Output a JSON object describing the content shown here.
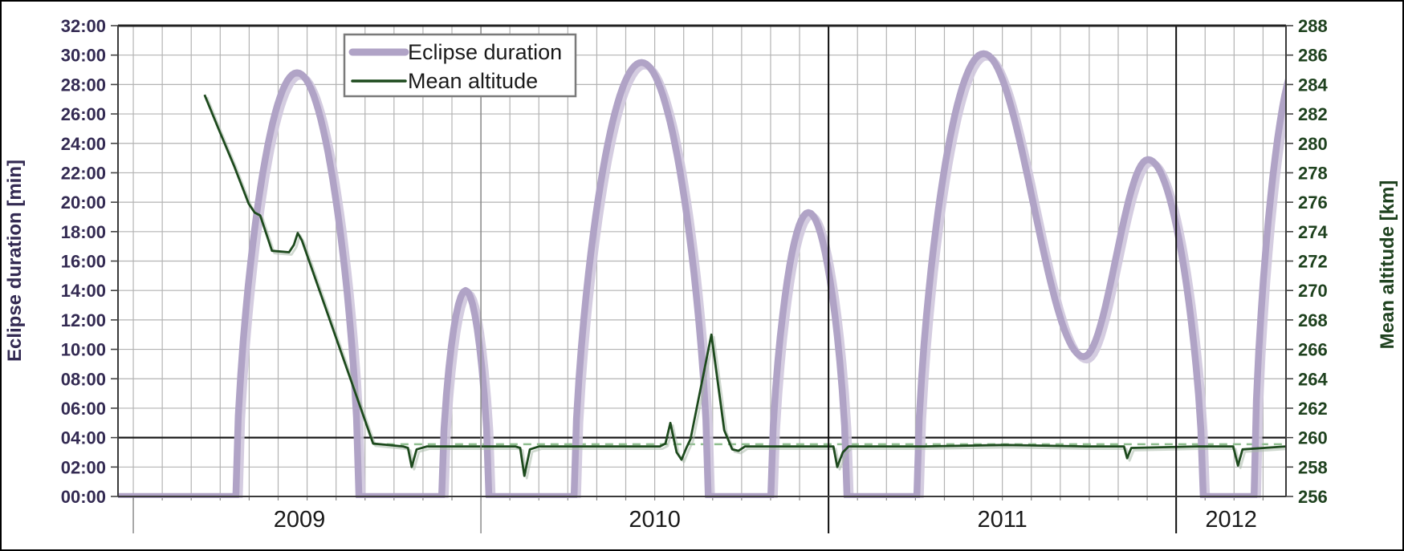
{
  "chart_data": {
    "type": "line",
    "title": "",
    "x_axis": {
      "kind": "time-years",
      "min_year": 2008.956,
      "max_year": 2012.316,
      "months_per_gridline": 1,
      "year_labels": [
        "2009",
        "2010",
        "2011",
        "2012"
      ],
      "year_separators": [
        {
          "year": 2010,
          "strong": false
        },
        {
          "year": 2011,
          "strong": true
        },
        {
          "year": 2012,
          "strong": true
        }
      ]
    },
    "left_axis": {
      "title": "Eclipse duration [min]",
      "min": 0,
      "max": 32,
      "step": 2,
      "tick_labels": [
        "32:00",
        "30:00",
        "28:00",
        "26:00",
        "24:00",
        "22:00",
        "20:00",
        "18:00",
        "16:00",
        "14:00",
        "12:00",
        "10:00",
        "08:00",
        "06:00",
        "04:00",
        "02:00",
        "00:00"
      ],
      "text_color": "#332a52"
    },
    "right_axis": {
      "title": "Mean altitude [km]",
      "min": 256,
      "max": 288,
      "step": 2,
      "tick_labels": [
        "288",
        "286",
        "284",
        "282",
        "280",
        "278",
        "276",
        "274",
        "272",
        "270",
        "268",
        "266",
        "264",
        "262",
        "260",
        "258",
        "256"
      ],
      "text_color": "#1f421f"
    },
    "grid": {
      "on": true,
      "color": "#b3b3b3"
    },
    "legend": {
      "position": "top-left-inside",
      "entries": [
        {
          "label": "Eclipse duration",
          "color": "#b0a3c6",
          "thick": true
        },
        {
          "label": "Mean altitude",
          "color": "#1d4a1d",
          "thick": false
        }
      ]
    },
    "series": [
      {
        "name": "Eclipse duration",
        "axis": "left",
        "units": "minutes",
        "color": "#b0a3c6",
        "shadow_color": "#cfc7dd",
        "width": 8.5,
        "knots_comment": "triples [decimal_year, minutes, easing-to-next]; lobes peak at listed values",
        "knots": [
          [
            2008.956,
            0,
            "lin"
          ],
          [
            2009.295,
            0,
            "up"
          ],
          [
            2009.471,
            28.8,
            "down"
          ],
          [
            2009.649,
            0,
            "lin"
          ],
          [
            2009.887,
            0,
            "up"
          ],
          [
            2009.956,
            14.0,
            "down"
          ],
          [
            2010.023,
            0,
            "lin"
          ],
          [
            2010.268,
            0,
            "up"
          ],
          [
            2010.462,
            29.5,
            "down"
          ],
          [
            2010.654,
            0,
            "lin"
          ],
          [
            2010.834,
            0,
            "up"
          ],
          [
            2010.942,
            19.3,
            "down"
          ],
          [
            2011.053,
            0,
            "lin"
          ],
          [
            2011.254,
            0,
            "up"
          ],
          [
            2011.446,
            30.1,
            "cos"
          ],
          [
            2011.734,
            9.5,
            "cos"
          ],
          [
            2011.919,
            22.9,
            "down"
          ],
          [
            2012.078,
            0,
            "lin"
          ],
          [
            2012.224,
            0,
            "up"
          ],
          [
            2012.36,
            30.0,
            "end"
          ]
        ]
      },
      {
        "name": "Mean altitude",
        "axis": "right",
        "units": "km",
        "color": "#1d4a1d",
        "shadow_color": "#a9b9a9",
        "width": 2.8,
        "points": [
          [
            2009.205,
            283.3
          ],
          [
            2009.245,
            281.0
          ],
          [
            2009.291,
            278.4
          ],
          [
            2009.332,
            275.9
          ],
          [
            2009.349,
            275.3
          ],
          [
            2009.365,
            275.1
          ],
          [
            2009.399,
            272.7
          ],
          [
            2009.448,
            272.6
          ],
          [
            2009.462,
            273.1
          ],
          [
            2009.473,
            273.9
          ],
          [
            2009.485,
            273.4
          ],
          [
            2009.69,
            259.6
          ],
          [
            2009.776,
            259.4
          ],
          [
            2009.79,
            259.3
          ],
          [
            2009.801,
            258.0
          ],
          [
            2009.815,
            259.2
          ],
          [
            2009.845,
            259.4
          ],
          [
            2010.099,
            259.4
          ],
          [
            2010.113,
            259.3
          ],
          [
            2010.125,
            257.4
          ],
          [
            2010.141,
            259.2
          ],
          [
            2010.168,
            259.4
          ],
          [
            2010.515,
            259.4
          ],
          [
            2010.531,
            259.6
          ],
          [
            2010.545,
            261.0
          ],
          [
            2010.563,
            259.0
          ],
          [
            2010.577,
            258.5
          ],
          [
            2010.591,
            259.3
          ],
          [
            2010.603,
            259.9
          ],
          [
            2010.663,
            267.0
          ],
          [
            2010.7,
            260.5
          ],
          [
            2010.723,
            259.2
          ],
          [
            2010.741,
            259.1
          ],
          [
            2010.76,
            259.4
          ],
          [
            2011.014,
            259.4
          ],
          [
            2011.025,
            258.0
          ],
          [
            2011.041,
            259.0
          ],
          [
            2011.058,
            259.4
          ],
          [
            2011.277,
            259.4
          ],
          [
            2011.508,
            259.5
          ],
          [
            2011.739,
            259.4
          ],
          [
            2011.85,
            259.4
          ],
          [
            2011.859,
            258.6
          ],
          [
            2011.871,
            259.3
          ],
          [
            2012.062,
            259.4
          ],
          [
            2012.164,
            259.4
          ],
          [
            2012.178,
            258.1
          ],
          [
            2012.191,
            259.2
          ],
          [
            2012.316,
            259.4
          ]
        ]
      }
    ],
    "reference_lines": [
      {
        "axis": "right",
        "value": 260.0,
        "color": "#1a1a1a",
        "style": "solid",
        "from_year": 2008.956,
        "to_year": 2012.316
      },
      {
        "axis": "right",
        "value": 259.55,
        "color": "#8fbe8f",
        "style": "dashed",
        "from_year": 2009.69,
        "to_year": 2012.316
      }
    ],
    "year_label_color": "#1a1a1a",
    "border_color": "#3a3a3a"
  }
}
